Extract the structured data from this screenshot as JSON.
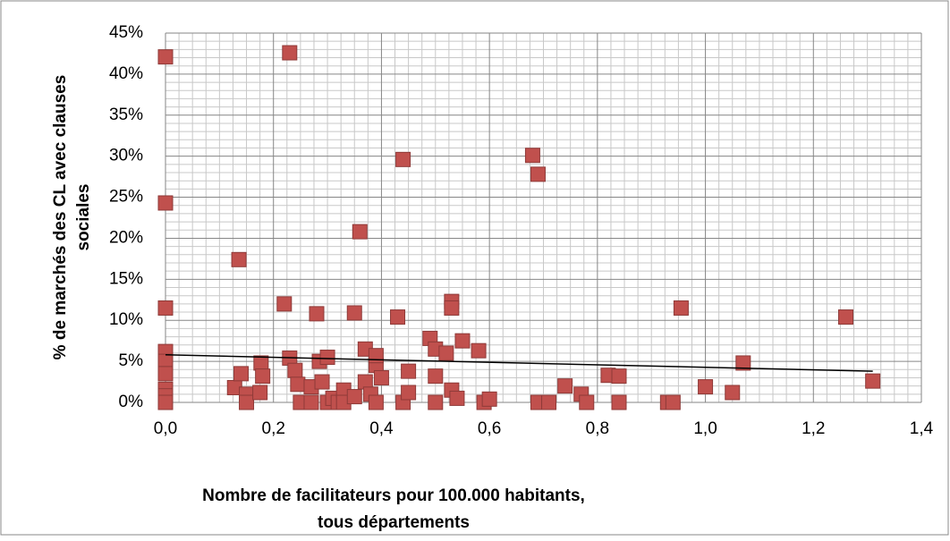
{
  "chart_data": {
    "type": "scatter",
    "xlabel": [
      "Nombre de facilitateurs pour 100.000 habitants,",
      "tous départements"
    ],
    "ylabel": [
      "% de marchés des CL avec clauses",
      "sociales"
    ],
    "xlim": [
      0,
      1.4
    ],
    "xticks": [
      {
        "value": 0,
        "label": "0,0"
      },
      {
        "value": 0.2,
        "label": "0,2"
      },
      {
        "value": 0.4,
        "label": "0,4"
      },
      {
        "value": 0.6,
        "label": "0,6"
      },
      {
        "value": 0.8,
        "label": "0,8"
      },
      {
        "value": 1.0,
        "label": "1,0"
      },
      {
        "value": 1.2,
        "label": "1,2"
      },
      {
        "value": 1.4,
        "label": "1,4"
      }
    ],
    "ylim": [
      0,
      45
    ],
    "yticks": [
      {
        "value": 0,
        "label": "0%"
      },
      {
        "value": 5,
        "label": "5%"
      },
      {
        "value": 10,
        "label": "10%"
      },
      {
        "value": 15,
        "label": "15%"
      },
      {
        "value": 20,
        "label": "20%"
      },
      {
        "value": 25,
        "label": "25%"
      },
      {
        "value": 30,
        "label": "30%"
      },
      {
        "value": 35,
        "label": "35%"
      },
      {
        "value": 40,
        "label": "40%"
      },
      {
        "value": 45,
        "label": "45%"
      }
    ],
    "grid": true,
    "color": "#c0504d",
    "x": [
      0,
      0.23,
      0,
      0.136,
      0,
      0,
      0,
      0,
      0,
      0,
      0,
      0.128,
      0.14,
      0.15,
      0.15,
      0.175,
      0.177,
      0.18,
      0.22,
      0.23,
      0.24,
      0.245,
      0.25,
      0.27,
      0.27,
      0.28,
      0.285,
      0.29,
      0.3,
      0.3,
      0.31,
      0.32,
      0.33,
      0.33,
      0.35,
      0.36,
      0.35,
      0.37,
      0.37,
      0.38,
      0.39,
      0.39,
      0.39,
      0.4,
      0.43,
      0.44,
      0.44,
      0.45,
      0.45,
      0.49,
      0.5,
      0.5,
      0.5,
      0.52,
      0.53,
      0.53,
      0.53,
      0.54,
      0.55,
      0.58,
      0.59,
      0.6,
      0.68,
      0.69,
      0.69,
      0.71,
      0.74,
      0.77,
      0.78,
      0.82,
      0.84,
      0.84,
      0.93,
      0.94,
      0.955,
      1.0,
      1.05,
      1.07,
      1.26,
      1.31
    ],
    "values": [
      42.1,
      42.6,
      24.3,
      17.4,
      11.5,
      6.2,
      5,
      3.5,
      1.6,
      0.8,
      0,
      1.8,
      3.5,
      1,
      0,
      1.2,
      4.8,
      3.2,
      12,
      5.4,
      3.9,
      2.2,
      0,
      1.9,
      0,
      10.8,
      5,
      2.5,
      0,
      5.5,
      0.5,
      0,
      1.5,
      0,
      10.9,
      20.8,
      0.7,
      6.5,
      2.5,
      1,
      0,
      4.5,
      5.7,
      3,
      10.4,
      29.6,
      0,
      3.8,
      1.2,
      7.8,
      6.5,
      3.2,
      0,
      6,
      12.3,
      11.5,
      1.5,
      0.5,
      7.5,
      6.3,
      0,
      0.4,
      30.1,
      27.8,
      0,
      0,
      2,
      1,
      0,
      3.3,
      3.2,
      0,
      0,
      0,
      11.5,
      1.9,
      1.2,
      4.8,
      10.4,
      2.6
    ],
    "trendline": {
      "x": [
        0,
        1.31
      ],
      "values": [
        5.8,
        3.8
      ],
      "color": "#000000"
    }
  }
}
